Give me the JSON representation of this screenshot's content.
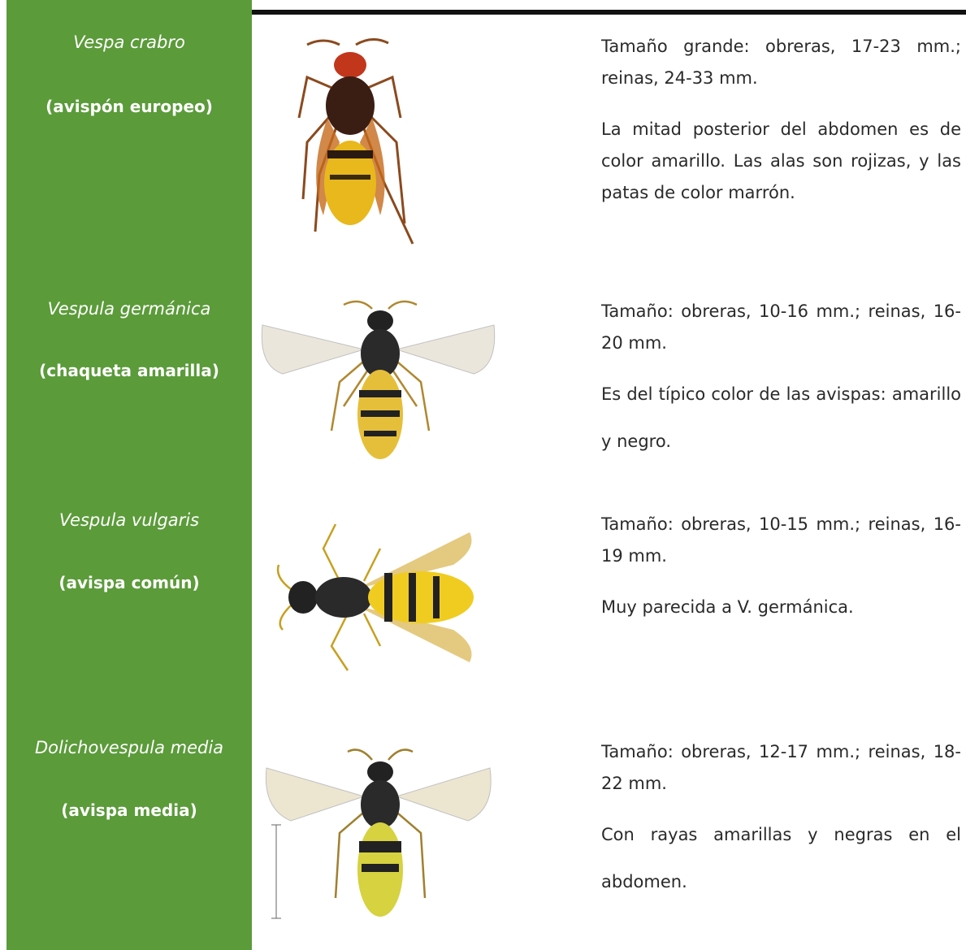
{
  "rows": [
    {
      "scientific_name": "Vespa crabro",
      "common_name": "(avispón europeo)",
      "description": [
        "Tamaño grande: obreras, 17-23 mm.; reinas, 24-33 mm.",
        "La mitad posterior del abdomen es de color amarillo. Las alas son rojizas, y las patas de color marrón."
      ]
    },
    {
      "scientific_name": "Vespula germánica",
      "common_name": "(chaqueta amarilla)",
      "description": [
        "Tamaño: obreras, 10-16 mm.; reinas, 16-20 mm.",
        "Es del típico color de las avispas: amarillo y negro."
      ]
    },
    {
      "scientific_name": "Vespula vulgaris",
      "common_name": "(avispa común)",
      "description": [
        "Tamaño: obreras, 10-15 mm.; reinas, 16-19 mm.",
        "Muy parecida a V. germánica."
      ]
    },
    {
      "scientific_name": "Dolichovespula media",
      "common_name": "(avispa media)",
      "description": [
        "Tamaño: obreras, 12-17 mm.; reinas, 18-22 mm.",
        "Con rayas amarillas y negras en el abdomen."
      ]
    }
  ]
}
